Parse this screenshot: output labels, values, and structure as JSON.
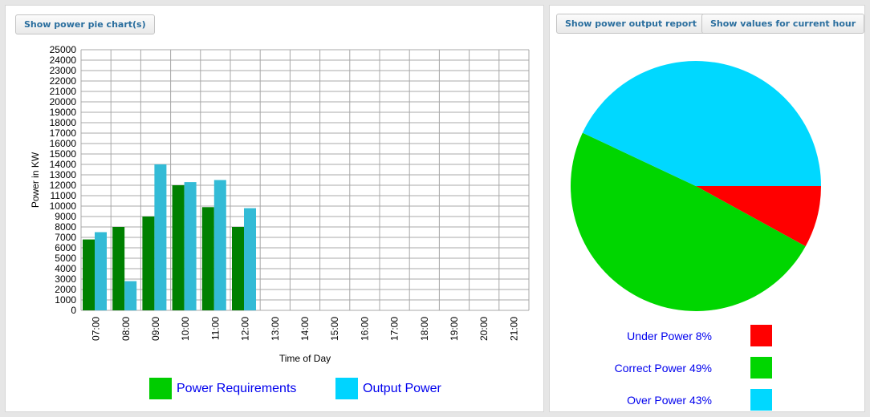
{
  "buttons": {
    "pie_toggle": "Show power pie chart(s)",
    "report": "Show power output report",
    "current_hour": "Show values for current hour"
  },
  "colors": {
    "requirements": "#008000",
    "requirements_legend": "#00cc00",
    "output": "#33bbd6",
    "output_legend": "#00d4ff",
    "grid": "#a8a8a8",
    "legend_text": "#0000ee"
  },
  "chart_data": [
    {
      "type": "bar",
      "xlabel": "Time of Day",
      "ylabel": "Power in KW",
      "ylim": [
        0,
        25000
      ],
      "ytick_step": 1000,
      "grid": true,
      "legend_placement": "bottom",
      "categories": [
        "07:00",
        "08:00",
        "09:00",
        "10:00",
        "11:00",
        "12:00",
        "13:00",
        "14:00",
        "15:00",
        "16:00",
        "17:00",
        "18:00",
        "19:00",
        "20:00",
        "21:00"
      ],
      "series": [
        {
          "name": "Power Requirements",
          "values": [
            6800,
            8000,
            9000,
            12000,
            9900,
            8000,
            null,
            null,
            null,
            null,
            null,
            null,
            null,
            null,
            null
          ]
        },
        {
          "name": "Output Power",
          "values": [
            7500,
            2800,
            14000,
            12300,
            12500,
            9800,
            null,
            null,
            null,
            null,
            null,
            null,
            null,
            null,
            null
          ]
        }
      ]
    },
    {
      "type": "pie",
      "slices": [
        {
          "label": "Under Power",
          "value": 8,
          "color": "#ff0000",
          "text": "Under Power 8%"
        },
        {
          "label": "Correct Power",
          "value": 49,
          "color": "#00d600",
          "text": "Correct Power 49%"
        },
        {
          "label": "Over Power",
          "value": 43,
          "color": "#00d8ff",
          "text": "Over Power 43%"
        }
      ]
    }
  ]
}
